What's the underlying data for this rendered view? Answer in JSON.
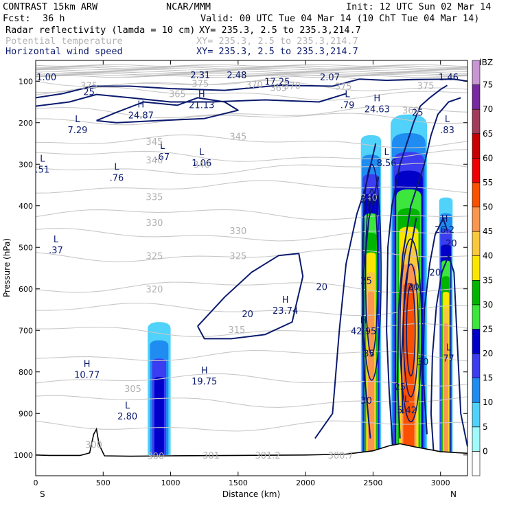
{
  "header": {
    "model": "CONTRAST 15km ARW",
    "org": "NCAR/MMM",
    "init": "Init: 12 UTC Sun 02 Mar 14",
    "fcst_label": "Fcst:",
    "fcst_value": "36 h",
    "valid": "Valid: 00 UTC Tue 04 Mar 14 (10 ChT Tue 04 Mar 14)",
    "fields": [
      {
        "name": "Radar reflectivity (lamda = 10 cm)",
        "xy": "XY= 235.3,  2.5 to 235.3,214.7",
        "color": "#000000"
      },
      {
        "name": "Potential temperature",
        "xy": "XY= 235.3,  2.5 to 235.3,214.7",
        "color": "#b4b4b4"
      },
      {
        "name": "Horizontal wind speed",
        "xy": "XY= 235.3,  2.5 to 235.3,214.7",
        "color": "#0a1a6e"
      }
    ]
  },
  "chart_data": {
    "type": "heatmap",
    "xlabel": "Distance (km)",
    "ylabel": "Pressure (hPa)",
    "xlim": [
      0,
      3200
    ],
    "ylim": [
      1050,
      50
    ],
    "x_ticks": [
      0,
      500,
      1000,
      1500,
      2000,
      2500,
      3000
    ],
    "y_ticks": [
      100,
      200,
      300,
      400,
      500,
      600,
      700,
      800,
      900,
      1000
    ],
    "x_end_labels": {
      "left": "S",
      "right": "N"
    },
    "colorbar": {
      "unit": "dBZ",
      "levels": [
        0,
        5,
        10,
        15,
        20,
        25,
        30,
        35,
        40,
        45,
        50,
        55,
        60,
        65,
        70,
        75
      ],
      "colors": [
        "#ffffff",
        "#a0fafa",
        "#50d2fa",
        "#1e8cf0",
        "#3c3cf0",
        "#0000c8",
        "#3ce63c",
        "#00b400",
        "#fae600",
        "#fac83c",
        "#fa9650",
        "#fa5000",
        "#f00000",
        "#c80000",
        "#a03c5a",
        "#7828a0",
        "#c896d2"
      ]
    },
    "reflectivity_columns": [
      {
        "x": [
          830,
          1000
        ],
        "top_hPa": 680,
        "bottom_hPa": 1000,
        "max_dBZ": 20
      },
      {
        "x": [
          2410,
          2560
        ],
        "top_hPa": 230,
        "bottom_hPa": 1000,
        "max_dBZ": 45
      },
      {
        "x": [
          2630,
          2900
        ],
        "top_hPa": 180,
        "bottom_hPa": 1000,
        "max_dBZ": 50
      },
      {
        "x": [
          2990,
          3090
        ],
        "top_hPa": 380,
        "bottom_hPa": 1000,
        "max_dBZ": 45
      }
    ],
    "theta_contour_labels": [
      "375",
      "370",
      "365",
      "360",
      "345",
      "340",
      "335",
      "330",
      "325",
      "320",
      "315",
      "305",
      "300",
      "301",
      "301.2",
      "300.7"
    ],
    "wind_contour_labels": [
      "25",
      "20",
      "30"
    ],
    "extrema": [
      {
        "type": "L",
        "value": "1.00",
        "x": 80,
        "p": 90
      },
      {
        "type": "H",
        "value": "2.31",
        "x": 1220,
        "p": 85
      },
      {
        "type": "L",
        "value": "2.48",
        "x": 1490,
        "p": 85
      },
      {
        "type": "H",
        "value": "17.25",
        "x": 1790,
        "p": 100
      },
      {
        "type": "L",
        "value": "2.07",
        "x": 2180,
        "p": 90
      },
      {
        "type": "L",
        "value": "1.46",
        "x": 3060,
        "p": 90
      },
      {
        "type": "H",
        "value": "21.13",
        "x": 1230,
        "p": 145
      },
      {
        "type": "L",
        "value": ".79",
        "x": 2310,
        "p": 145
      },
      {
        "type": "H",
        "value": "24.63",
        "x": 2530,
        "p": 155
      },
      {
        "type": "H",
        "value": "24.87",
        "x": 780,
        "p": 170
      },
      {
        "type": "L",
        "value": "7.29",
        "x": 310,
        "p": 205
      },
      {
        "type": "L",
        "value": ".83",
        "x": 3050,
        "p": 205
      },
      {
        "type": "L",
        "value": ".67",
        "x": 940,
        "p": 270
      },
      {
        "type": "L",
        "value": "1.06",
        "x": 1230,
        "p": 285
      },
      {
        "type": "L",
        "value": ".51",
        "x": 50,
        "p": 300
      },
      {
        "type": "L",
        "value": "8.56",
        "x": 2600,
        "p": 285
      },
      {
        "type": "L",
        "value": ".76",
        "x": 600,
        "p": 320
      },
      {
        "type": "H",
        "value": "26.2",
        "x": 3030,
        "p": 445
      },
      {
        "type": "L",
        "value": ".37",
        "x": 150,
        "p": 495
      },
      {
        "type": "H",
        "value": "23.74",
        "x": 1850,
        "p": 640
      },
      {
        "type": "H",
        "value": "42.95",
        "x": 2430,
        "p": 690
      },
      {
        "type": "L",
        "value": "77",
        "x": 3060,
        "p": 755
      },
      {
        "type": "H",
        "value": "10.77",
        "x": 380,
        "p": 795
      },
      {
        "type": "H",
        "value": "19.75",
        "x": 1250,
        "p": 810
      },
      {
        "type": "L",
        "value": "5.42",
        "x": 2750,
        "p": 880
      },
      {
        "type": "L",
        "value": "2.80",
        "x": 680,
        "p": 895
      }
    ]
  }
}
